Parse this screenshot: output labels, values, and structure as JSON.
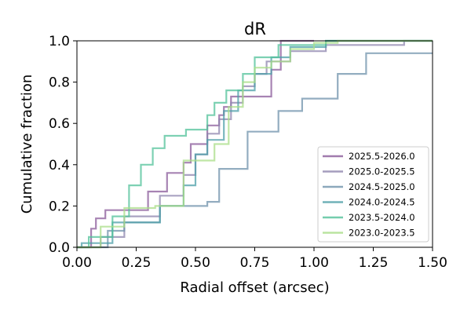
{
  "chart_data": {
    "type": "line",
    "title": "dR",
    "xlabel": "Radial offset (arcsec)",
    "ylabel": "Cumulative fraction",
    "xlim": [
      0.0,
      1.5
    ],
    "ylim": [
      0.0,
      1.0
    ],
    "xticks": [
      "0.00",
      "0.25",
      "0.50",
      "0.75",
      "1.00",
      "1.25",
      "1.50"
    ],
    "yticks": [
      "0.0",
      "0.2",
      "0.4",
      "0.6",
      "0.8",
      "1.0"
    ],
    "grid": false,
    "legend_position": "lower right",
    "series": [
      {
        "name": "2025.5-2026.0",
        "color": "#8a5a9a",
        "x": [
          0.0,
          0.06,
          0.06,
          0.08,
          0.08,
          0.12,
          0.12,
          0.3,
          0.3,
          0.38,
          0.38,
          0.45,
          0.45,
          0.48,
          0.48,
          0.55,
          0.55,
          0.6,
          0.6,
          0.62,
          0.62,
          0.65,
          0.65,
          0.7,
          0.7,
          0.82,
          0.82,
          0.86,
          0.86,
          1.0
        ],
        "y": [
          0.0,
          0.0,
          0.09,
          0.09,
          0.14,
          0.14,
          0.18,
          0.18,
          0.27,
          0.27,
          0.36,
          0.36,
          0.41,
          0.41,
          0.5,
          0.5,
          0.59,
          0.59,
          0.64,
          0.64,
          0.68,
          0.68,
          0.73,
          0.73,
          0.73,
          0.73,
          0.86,
          0.86,
          1.0,
          1.0
        ]
      },
      {
        "name": "2025.0-2025.5",
        "color": "#8e84ae",
        "x": [
          0.0,
          0.1,
          0.1,
          0.2,
          0.2,
          0.35,
          0.35,
          0.45,
          0.45,
          0.5,
          0.5,
          0.55,
          0.55,
          0.6,
          0.6,
          0.65,
          0.65,
          0.7,
          0.7,
          0.75,
          0.75,
          0.8,
          0.8,
          0.9,
          0.9,
          1.05,
          1.05,
          1.38,
          1.38,
          1.5
        ],
        "y": [
          0.0,
          0.0,
          0.05,
          0.05,
          0.15,
          0.15,
          0.25,
          0.25,
          0.35,
          0.35,
          0.45,
          0.45,
          0.55,
          0.55,
          0.62,
          0.62,
          0.7,
          0.7,
          0.78,
          0.78,
          0.84,
          0.84,
          0.9,
          0.9,
          0.95,
          0.95,
          0.98,
          0.98,
          1.0,
          1.0
        ]
      },
      {
        "name": "2024.5-2025.0",
        "color": "#6f92ab",
        "x": [
          0.0,
          0.13,
          0.13,
          0.2,
          0.2,
          0.35,
          0.35,
          0.55,
          0.55,
          0.6,
          0.6,
          0.72,
          0.72,
          0.85,
          0.85,
          0.95,
          0.95,
          1.1,
          1.1,
          1.22,
          1.22,
          1.38,
          1.38,
          1.5
        ],
        "y": [
          0.0,
          0.0,
          0.08,
          0.08,
          0.12,
          0.12,
          0.2,
          0.2,
          0.22,
          0.22,
          0.38,
          0.38,
          0.56,
          0.56,
          0.66,
          0.66,
          0.72,
          0.72,
          0.84,
          0.84,
          0.94,
          0.94,
          0.94,
          0.94
        ]
      },
      {
        "name": "2024.0-2024.5",
        "color": "#4c9fa8",
        "x": [
          0.0,
          0.02,
          0.02,
          0.15,
          0.15,
          0.35,
          0.35,
          0.45,
          0.45,
          0.5,
          0.5,
          0.55,
          0.55,
          0.62,
          0.62,
          0.68,
          0.68,
          0.75,
          0.75,
          0.82,
          0.82,
          0.9,
          0.9,
          1.05,
          1.05,
          1.2,
          1.2,
          1.5
        ],
        "y": [
          0.0,
          0.0,
          0.02,
          0.02,
          0.12,
          0.12,
          0.2,
          0.2,
          0.3,
          0.3,
          0.45,
          0.45,
          0.52,
          0.52,
          0.66,
          0.66,
          0.76,
          0.76,
          0.84,
          0.84,
          0.92,
          0.92,
          0.97,
          0.97,
          1.0,
          1.0,
          1.0,
          1.0
        ]
      },
      {
        "name": "2023.5-2024.0",
        "color": "#52c19a",
        "x": [
          0.0,
          0.05,
          0.05,
          0.15,
          0.15,
          0.22,
          0.22,
          0.27,
          0.27,
          0.32,
          0.32,
          0.37,
          0.37,
          0.46,
          0.46,
          0.55,
          0.55,
          0.58,
          0.58,
          0.63,
          0.63,
          0.7,
          0.7,
          0.75,
          0.75,
          0.85,
          0.85,
          1.05,
          1.05,
          1.5
        ],
        "y": [
          0.0,
          0.0,
          0.05,
          0.05,
          0.15,
          0.15,
          0.3,
          0.3,
          0.4,
          0.4,
          0.48,
          0.48,
          0.54,
          0.54,
          0.57,
          0.57,
          0.64,
          0.64,
          0.7,
          0.7,
          0.76,
          0.76,
          0.84,
          0.84,
          0.92,
          0.92,
          0.98,
          0.98,
          1.0,
          1.0
        ]
      },
      {
        "name": "2023.0-2023.5",
        "color": "#a9dd88",
        "x": [
          0.0,
          0.1,
          0.1,
          0.2,
          0.2,
          0.33,
          0.33,
          0.45,
          0.45,
          0.58,
          0.58,
          0.64,
          0.64,
          0.7,
          0.7,
          0.75,
          0.75,
          0.82,
          0.82,
          0.9,
          0.9,
          1.0,
          1.0,
          1.1,
          1.1,
          1.5
        ],
        "y": [
          0.0,
          0.0,
          0.1,
          0.1,
          0.19,
          0.19,
          0.2,
          0.2,
          0.42,
          0.42,
          0.5,
          0.5,
          0.68,
          0.68,
          0.8,
          0.8,
          0.87,
          0.87,
          0.9,
          0.9,
          0.96,
          0.96,
          0.99,
          0.99,
          1.0,
          1.0
        ]
      }
    ]
  }
}
